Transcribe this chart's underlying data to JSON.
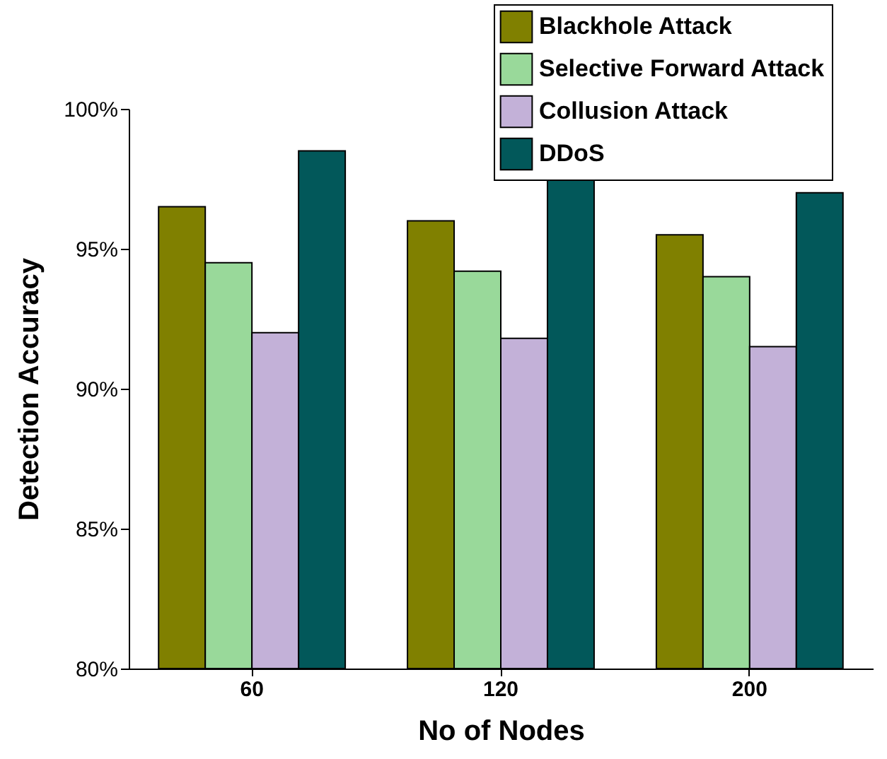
{
  "chart_data": {
    "type": "bar",
    "xlabel": "No of Nodes",
    "ylabel": "Detection Accuracy",
    "categories": [
      "60",
      "120",
      "200"
    ],
    "series": [
      {
        "name": "Blackhole Attack",
        "color": "#808000",
        "values": [
          96.5,
          96.0,
          95.5
        ]
      },
      {
        "name": "Selective Forward Attack",
        "color": "#99d99a",
        "values": [
          94.5,
          94.2,
          94.0
        ]
      },
      {
        "name": "Collusion Attack",
        "color": "#c3b1d8",
        "values": [
          92.0,
          91.8,
          91.5
        ]
      },
      {
        "name": "DDoS",
        "color": "#02585a",
        "values": [
          98.5,
          97.5,
          97.0
        ]
      }
    ],
    "ylim": [
      80,
      100
    ],
    "yticks": [
      {
        "value": 80,
        "label": "80%"
      },
      {
        "value": 85,
        "label": "85%"
      },
      {
        "value": 90,
        "label": "90%"
      },
      {
        "value": 95,
        "label": "95%"
      },
      {
        "value": 100,
        "label": "100%"
      }
    ],
    "grid": false,
    "legend": "top right"
  }
}
